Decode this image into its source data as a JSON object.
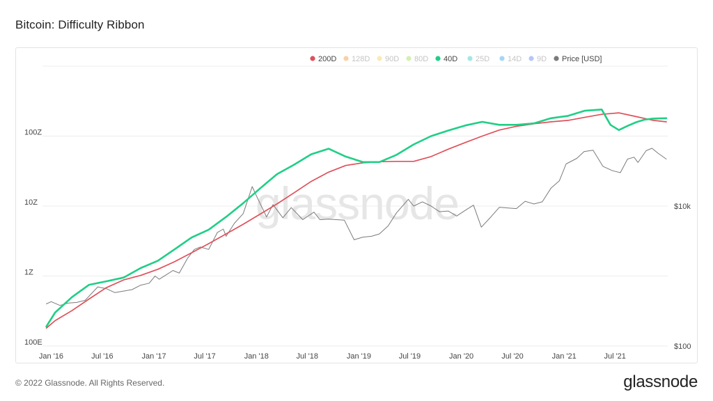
{
  "page": {
    "title": "Bitcoin: Difficulty Ribbon",
    "copyright": "© 2022 Glassnode. All Rights Reserved.",
    "brand": "glassnode",
    "watermark": "glassnode"
  },
  "colors": {
    "200D": "#e0505a",
    "128D": "#f08a2a",
    "90D": "#f2c94c",
    "80D": "#8edc3a",
    "40D": "#1fcf86",
    "25D": "#17c3c0",
    "14D": "#1c9bea",
    "9D": "#4a6ff0",
    "Price [USD]": "#7a7a7a"
  },
  "chart_data": {
    "type": "line",
    "title": "Bitcoin: Difficulty Ribbon",
    "legend": {
      "placement": "top-right",
      "items": [
        {
          "label": "200D",
          "visible": true
        },
        {
          "label": "128D",
          "visible": false
        },
        {
          "label": "90D",
          "visible": false
        },
        {
          "label": "80D",
          "visible": false
        },
        {
          "label": "40D",
          "visible": true
        },
        {
          "label": "25D",
          "visible": false
        },
        {
          "label": "14D",
          "visible": false
        },
        {
          "label": "9D",
          "visible": false
        },
        {
          "label": "Price [USD]",
          "visible": true
        }
      ]
    },
    "x_ticks": [
      "Jan '16",
      "Jul '16",
      "Jan '17",
      "Jul '17",
      "Jan '18",
      "Jul '18",
      "Jan '19",
      "Jul '19",
      "Jan '20",
      "Jul '20",
      "Jan '21",
      "Jul '21"
    ],
    "y_left": {
      "scale": "log",
      "ticks": [
        "100E",
        "1Z",
        "10Z",
        "100Z"
      ],
      "range": [
        1e+20,
        1e+24
      ]
    },
    "y_right": {
      "scale": "log",
      "ticks": [
        "$100",
        "$10k"
      ],
      "range": [
        100,
        1000000.0
      ]
    },
    "grid": true,
    "series": [
      {
        "name": "200D",
        "axis": "left",
        "x": [
          "2015-12-15",
          "2016-01-15",
          "2016-03-15",
          "2016-05-15",
          "2016-07-15",
          "2016-09-15",
          "2016-11-15",
          "2017-01-15",
          "2017-03-15",
          "2017-05-15",
          "2017-07-15",
          "2017-09-15",
          "2017-11-15",
          "2018-01-15",
          "2018-03-15",
          "2018-05-15",
          "2018-07-15",
          "2018-09-15",
          "2018-11-15",
          "2019-01-15",
          "2019-03-15",
          "2019-05-15",
          "2019-07-15",
          "2019-09-15",
          "2019-11-15",
          "2020-01-15",
          "2020-03-15",
          "2020-05-15",
          "2020-07-15",
          "2020-09-15",
          "2020-11-15",
          "2021-01-15",
          "2021-03-15",
          "2021-05-15",
          "2021-07-15",
          "2021-09-15",
          "2021-11-15",
          "2021-12-31"
        ],
        "y": [
          1.8e+20,
          2.3e+20,
          3.2e+20,
          4.7e+20,
          6.8e+20,
          8.8e+20,
          1.02e+21,
          1.25e+21,
          1.6e+21,
          2.15e+21,
          2.9e+21,
          4e+21,
          5.5e+21,
          7.7e+21,
          1.07e+22,
          1.55e+22,
          2.25e+22,
          3.05e+22,
          3.8e+22,
          4.15e+22,
          4.3e+22,
          4.35e+22,
          4.35e+22,
          5.1e+22,
          6.5e+22,
          8.1e+22,
          1e+23,
          1.22e+23,
          1.38e+23,
          1.5e+23,
          1.6e+23,
          1.68e+23,
          1.85e+23,
          2.05e+23,
          2.15e+23,
          1.9e+23,
          1.68e+23,
          1.6e+23
        ]
      },
      {
        "name": "40D",
        "axis": "left",
        "x": [
          "2015-12-15",
          "2016-01-15",
          "2016-03-15",
          "2016-05-15",
          "2016-07-15",
          "2016-09-15",
          "2016-11-15",
          "2017-01-15",
          "2017-03-15",
          "2017-05-15",
          "2017-07-15",
          "2017-09-15",
          "2017-11-15",
          "2018-01-15",
          "2018-03-15",
          "2018-05-15",
          "2018-07-15",
          "2018-09-15",
          "2018-11-15",
          "2019-01-15",
          "2019-03-15",
          "2019-05-15",
          "2019-07-15",
          "2019-09-15",
          "2019-11-15",
          "2020-01-15",
          "2020-03-15",
          "2020-05-15",
          "2020-07-15",
          "2020-09-15",
          "2020-11-15",
          "2021-01-15",
          "2021-03-15",
          "2021-05-15",
          "2021-06-15",
          "2021-07-15",
          "2021-08-15",
          "2021-09-15",
          "2021-10-15",
          "2021-11-15",
          "2021-12-31"
        ],
        "y": [
          1.9e+20,
          3e+20,
          5e+20,
          7.5e+20,
          8.4e+20,
          9.5e+20,
          1.3e+21,
          1.65e+21,
          2.4e+21,
          3.55e+21,
          4.6e+21,
          7e+21,
          1.1e+22,
          1.8e+22,
          2.85e+22,
          3.9e+22,
          5.5e+22,
          6.6e+22,
          5.1e+22,
          4.25e+22,
          4.25e+22,
          5.4e+22,
          7.6e+22,
          1e+23,
          1.2e+23,
          1.42e+23,
          1.6e+23,
          1.45e+23,
          1.45e+23,
          1.52e+23,
          1.8e+23,
          1.95e+23,
          2.3e+23,
          2.4e+23,
          1.45e+23,
          1.22e+23,
          1.4e+23,
          1.58e+23,
          1.72e+23,
          1.78e+23,
          1.8e+23
        ]
      },
      {
        "name": "Price [USD]",
        "axis": "right",
        "x": [
          "2015-12-15",
          "2016-01-01",
          "2016-02-01",
          "2016-03-01",
          "2016-04-01",
          "2016-05-01",
          "2016-06-15",
          "2016-07-15",
          "2016-08-15",
          "2016-09-15",
          "2016-10-15",
          "2016-11-15",
          "2016-12-15",
          "2017-01-05",
          "2017-01-20",
          "2017-02-15",
          "2017-03-10",
          "2017-04-01",
          "2017-05-01",
          "2017-05-25",
          "2017-06-15",
          "2017-07-15",
          "2017-08-15",
          "2017-09-05",
          "2017-09-15",
          "2017-10-15",
          "2017-11-15",
          "2017-12-17",
          "2018-01-01",
          "2018-02-06",
          "2018-03-01",
          "2018-04-05",
          "2018-05-05",
          "2018-06-15",
          "2018-07-25",
          "2018-08-15",
          "2018-09-15",
          "2018-11-10",
          "2018-12-15",
          "2019-01-15",
          "2019-02-15",
          "2019-03-15",
          "2019-04-15",
          "2019-05-15",
          "2019-06-26",
          "2019-07-15",
          "2019-08-15",
          "2019-09-15",
          "2019-10-15",
          "2019-11-15",
          "2019-12-15",
          "2020-01-15",
          "2020-02-13",
          "2020-03-12",
          "2020-04-15",
          "2020-05-15",
          "2020-06-15",
          "2020-07-15",
          "2020-08-15",
          "2020-09-15",
          "2020-10-15",
          "2020-11-15",
          "2020-12-15",
          "2021-01-08",
          "2021-02-15",
          "2021-03-13",
          "2021-04-14",
          "2021-05-19",
          "2021-06-22",
          "2021-07-20",
          "2021-08-15",
          "2021-09-07",
          "2021-09-21",
          "2021-10-20",
          "2021-11-10",
          "2021-12-01",
          "2021-12-31"
        ],
        "y": [
          400,
          430,
          380,
          410,
          420,
          450,
          700,
          660,
          580,
          610,
          640,
          740,
          790,
          1000,
          900,
          1050,
          1200,
          1100,
          1800,
          2400,
          2600,
          2400,
          4200,
          4700,
          3700,
          5700,
          7800,
          19000,
          14000,
          7000,
          10500,
          6800,
          9500,
          6400,
          8200,
          6400,
          6500,
          6300,
          3300,
          3600,
          3700,
          4000,
          5200,
          8000,
          12500,
          10000,
          11500,
          10000,
          8300,
          8500,
          7200,
          8700,
          10300,
          5000,
          7000,
          9600,
          9400,
          9200,
          11700,
          10700,
          11500,
          18000,
          23000,
          40000,
          48000,
          60000,
          63000,
          37000,
          32000,
          30000,
          47000,
          50000,
          42000,
          62000,
          67000,
          57000,
          47000
        ]
      }
    ]
  }
}
